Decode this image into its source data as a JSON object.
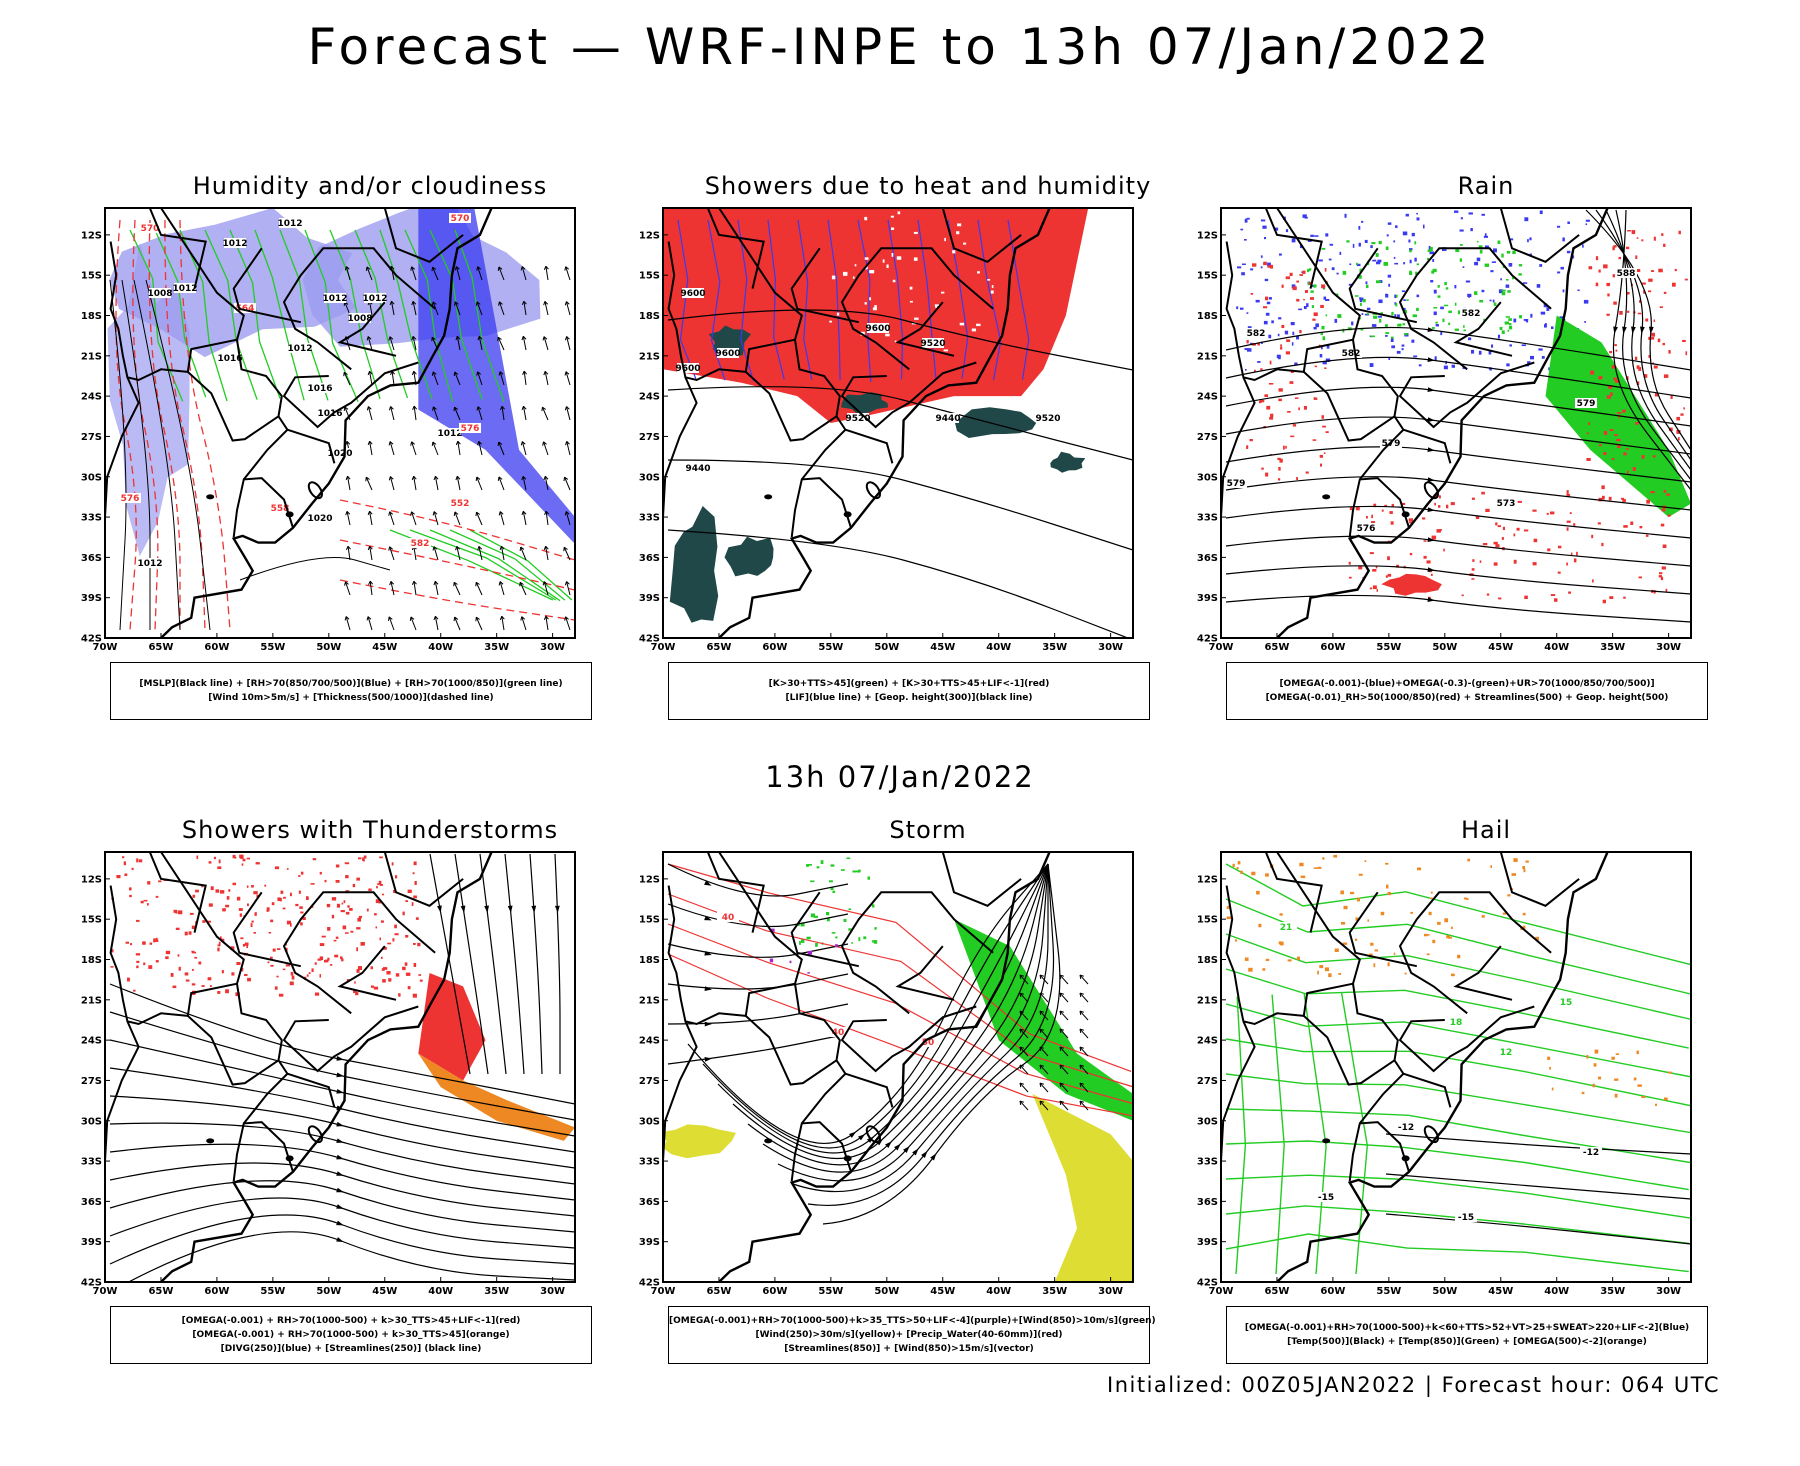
{
  "title": "Forecast — WRF-INPE to 13h 07/Jan/2022",
  "subtitle": "13h 07/Jan/2022",
  "footer": "Initialized: 00Z05JAN2022 | Forecast hour: 064 UTC",
  "axes": {
    "lat_labels": [
      "12S",
      "15S",
      "18S",
      "21S",
      "24S",
      "27S",
      "30S",
      "33S",
      "36S",
      "39S",
      "42S"
    ],
    "lon_labels": [
      "70W",
      "65W",
      "60W",
      "55W",
      "50W",
      "45W",
      "40W",
      "35W",
      "30W"
    ]
  },
  "colors": {
    "blue": "#3a3af0",
    "light_blue": "#9c9cf0",
    "green": "#22cc22",
    "red": "#ee3333",
    "orange": "#ee8822",
    "dark_teal": "#204848",
    "yellow": "#dddd33",
    "purple": "#aa22cc"
  },
  "panels": [
    {
      "title": "Humidity and/or cloudiness",
      "legend": [
        "[MSLP](Black line) + [RH>70(850/700/500)](Blue) + [RH>70(1000/850)](green line)",
        "[Wind 10m>5m/s] + [Thickness(500/1000)](dashed line)"
      ],
      "contour_labels": [
        "1012",
        "1012",
        "1008",
        "1012",
        "1012",
        "1012",
        "1008",
        "1016",
        "1012",
        "1016",
        "1016",
        "1020",
        "1020",
        "1012",
        "576",
        "576",
        "570",
        "570",
        "564",
        "558",
        "552",
        "582",
        "1012"
      ]
    },
    {
      "title": "Showers due to heat and humidity",
      "legend": [
        "[K>30+TTS>45](green) + [K>30+TTS>45+LIF<-1](red)",
        "[LIF](blue line) + [Geop. height(300)](black line)"
      ],
      "contour_labels": [
        "9600",
        "9600",
        "9600",
        "9600",
        "9520",
        "9520",
        "9440",
        "9520",
        "9440"
      ]
    },
    {
      "title": "Rain",
      "legend": [
        "[OMEGA(-0.001)-(blue)+OMEGA(-0.3)-(green)+UR>70(1000/850/700/500)]",
        "[OMEGA(-0.01)_RH>50(1000/850)(red) + Streamlines(500) + Geop. height(500)"
      ],
      "contour_labels": [
        "588",
        "582",
        "582",
        "582",
        "579",
        "579",
        "579",
        "573",
        "576"
      ]
    },
    {
      "title": "Showers with Thunderstorms",
      "legend": [
        "[OMEGA(-0.001) + RH>70(1000-500) + k>30_TTS>45+LIF<-1](red)",
        "[OMEGA(-0.001) + RH>70(1000-500) + k>30_TTS>45](orange)",
        "[DIVG(250)](blue) + [Streamlines(250)] (black line)"
      ],
      "contour_labels": []
    },
    {
      "title": "Storm",
      "legend": [
        "[OMEGA(-0.001)+RH>70(1000-500)+k>35_TTS>50+LIF<-4](purple)+[Wind(850)>10m/s](green)",
        "[Wind(250)>30m/s](yellow)+ [Precip_Water(40-60mm)](red)",
        "[Streamlines(850)] + [Wind(850)>15m/s](vector)"
      ],
      "contour_labels": [
        "40",
        "40",
        "50"
      ]
    },
    {
      "title": "Hail",
      "legend": [
        "[OMEGA(-0.001)+RH>70(1000-500)+k<60+TTS>52+VT>25+SWEAT>220+LIF<-2](Blue)",
        "[Temp(500)](Black) + [Temp(850)](Green) + [OMEGA(500)<-2](orange)"
      ],
      "contour_labels": [
        "-12",
        "-12",
        "-15",
        "-15",
        "12",
        "15",
        "18",
        "21"
      ]
    }
  ]
}
